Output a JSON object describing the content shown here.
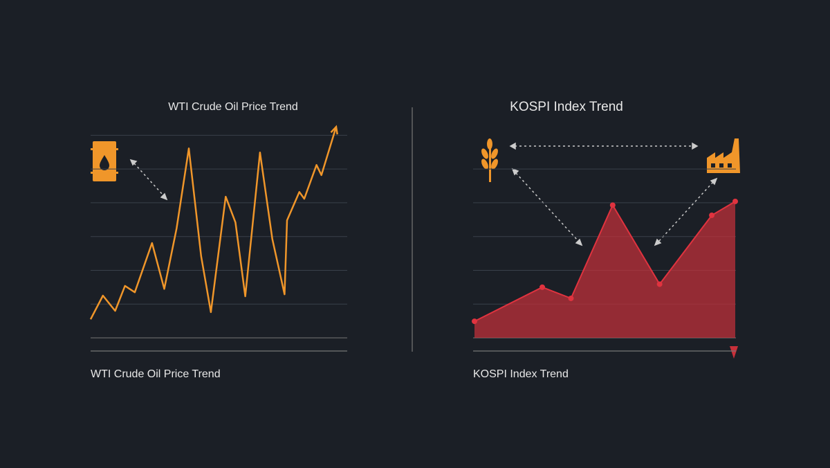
{
  "chart_data": [
    {
      "type": "line",
      "title": "WTI Crude Oil Price Trend",
      "caption": "WTI Crude Oil Price Trend",
      "color": "#f0962a",
      "x": [
        0,
        5,
        10,
        14,
        18,
        25,
        30,
        35,
        40,
        45,
        49,
        55,
        59,
        63,
        69,
        74,
        79,
        80,
        85,
        87,
        92,
        94,
        100
      ],
      "values": [
        5.5,
        12.5,
        8.0,
        15.4,
        13.5,
        28.1,
        14.5,
        32.4,
        56.1,
        24.2,
        7.6,
        41.8,
        34.2,
        12.3,
        54.9,
        29.3,
        12.9,
        34.8,
        43.2,
        41.2,
        51.2,
        48.2,
        62.5
      ],
      "xlim": [
        0,
        100
      ],
      "ylim": [
        0,
        65
      ],
      "yticks": [
        0,
        10,
        20,
        30,
        40,
        50,
        60
      ],
      "grid": true
    },
    {
      "type": "area",
      "title": "KOSPI Index Trend",
      "caption": "KOSPI Index Trend",
      "color": "#c8303a",
      "x": [
        0,
        26,
        37,
        53,
        71,
        91,
        100
      ],
      "values": [
        4.9,
        15.0,
        11.7,
        39.3,
        15.9,
        36.3,
        40.4
      ],
      "xlim": [
        0,
        100
      ],
      "ylim": [
        0,
        65
      ],
      "yticks": [
        0,
        10,
        20,
        30,
        40,
        50
      ],
      "grid": true
    }
  ]
}
